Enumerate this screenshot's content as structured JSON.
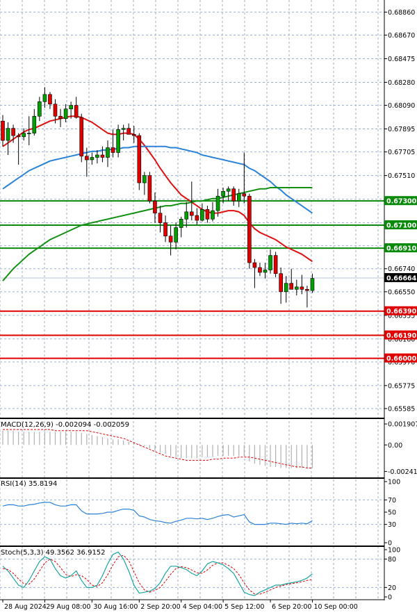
{
  "colors": {
    "bull": "#00a000",
    "bear": "#e00000",
    "wick": "#000000",
    "ma_fast": "#e01010",
    "ma_mid": "#2a82d8",
    "ma_slow": "#129012",
    "support_line": "#e00000",
    "resistance_line": "#0a8a0a",
    "grid": "#9ab0d0",
    "macd_hist": "#b0b0b0",
    "macd_signal": "#e00000",
    "rsi_line": "#2a82d8",
    "stoch_main": "#1aa5a0",
    "stoch_signal": "#e00000"
  },
  "chart_data": [
    {
      "type": "candlestick",
      "price_axis": {
        "ylim": [
          0.6551,
          0.6896
        ],
        "ticks": [
          "0.68860",
          "0.68670",
          "0.68475",
          "0.68280",
          "0.68090",
          "0.67895",
          "0.67705",
          "0.67510",
          "0.67315",
          "0.67120",
          "0.66930",
          "0.66740",
          "0.66550",
          "0.66355",
          "0.66160",
          "0.65970",
          "0.65775",
          "0.65585"
        ]
      },
      "x_axis": {
        "labels": [
          "28 Aug 2024",
          "29 Aug 08:00",
          "30 Aug 16:00",
          "2 Sep 20:00",
          "4 Sep 04:00",
          "5 Sep 12:00",
          "6 Sep 20:00",
          "10 Sep 00:00"
        ],
        "label_bar_index": [
          0,
          8,
          17,
          26,
          34,
          42,
          51,
          59
        ]
      },
      "series": [
        {
          "name": "candles",
          "ohlc": [
            [
              0.6796,
              0.6801,
              0.6775,
              0.678
            ],
            [
              0.678,
              0.6795,
              0.6768,
              0.679
            ],
            [
              0.679,
              0.6793,
              0.6778,
              0.6784
            ],
            [
              0.6784,
              0.6786,
              0.676,
              0.6783
            ],
            [
              0.6783,
              0.679,
              0.678,
              0.6786
            ],
            [
              0.6786,
              0.68,
              0.6776,
              0.6786
            ],
            [
              0.6786,
              0.6806,
              0.6784,
              0.68
            ],
            [
              0.68,
              0.6816,
              0.6796,
              0.6812
            ],
            [
              0.6812,
              0.6824,
              0.6807,
              0.6818
            ],
            [
              0.6818,
              0.682,
              0.6806,
              0.681
            ],
            [
              0.681,
              0.6814,
              0.6794,
              0.68
            ],
            [
              0.68,
              0.6806,
              0.6791,
              0.6798
            ],
            [
              0.6798,
              0.681,
              0.6795,
              0.6806
            ],
            [
              0.6806,
              0.6812,
              0.6798,
              0.6809
            ],
            [
              0.6809,
              0.6816,
              0.6798,
              0.6799
            ],
            [
              0.6799,
              0.6802,
              0.6762,
              0.6767
            ],
            [
              0.6767,
              0.6774,
              0.675,
              0.6764
            ],
            [
              0.6764,
              0.677,
              0.676,
              0.6766
            ],
            [
              0.6766,
              0.6772,
              0.6761,
              0.6768
            ],
            [
              0.6768,
              0.6775,
              0.6762,
              0.6766
            ],
            [
              0.6766,
              0.678,
              0.6758,
              0.6774
            ],
            [
              0.6774,
              0.6789,
              0.6766,
              0.677
            ],
            [
              0.677,
              0.6793,
              0.6766,
              0.6789
            ],
            [
              0.6789,
              0.6793,
              0.678,
              0.679
            ],
            [
              0.679,
              0.6794,
              0.6786,
              0.6785
            ],
            [
              0.6785,
              0.6792,
              0.6778,
              0.6784
            ],
            [
              0.6784,
              0.6786,
              0.6739,
              0.6745
            ],
            [
              0.6745,
              0.6754,
              0.6735,
              0.6751
            ],
            [
              0.6751,
              0.6754,
              0.6728,
              0.673
            ],
            [
              0.673,
              0.6737,
              0.6712,
              0.672
            ],
            [
              0.672,
              0.6726,
              0.6704,
              0.6712
            ],
            [
              0.6712,
              0.6718,
              0.6696,
              0.6701
            ],
            [
              0.6701,
              0.671,
              0.6685,
              0.6696
            ],
            [
              0.6696,
              0.6712,
              0.669,
              0.6708
            ],
            [
              0.6708,
              0.6717,
              0.67,
              0.6715
            ],
            [
              0.6715,
              0.6729,
              0.6708,
              0.6721
            ],
            [
              0.6721,
              0.6746,
              0.6714,
              0.6718
            ],
            [
              0.6718,
              0.6724,
              0.671,
              0.6714
            ],
            [
              0.6714,
              0.6728,
              0.6713,
              0.6723
            ],
            [
              0.6723,
              0.6726,
              0.6712,
              0.6715
            ],
            [
              0.6715,
              0.6729,
              0.6713,
              0.6722
            ],
            [
              0.6722,
              0.674,
              0.6717,
              0.6734
            ],
            [
              0.6734,
              0.6741,
              0.6728,
              0.6738
            ],
            [
              0.6738,
              0.6742,
              0.673,
              0.674
            ],
            [
              0.674,
              0.6742,
              0.6726,
              0.673
            ],
            [
              0.673,
              0.674,
              0.6725,
              0.6736
            ],
            [
              0.6736,
              0.677,
              0.6728,
              0.6734
            ],
            [
              0.6734,
              0.6736,
              0.6674,
              0.6679
            ],
            [
              0.6679,
              0.6682,
              0.6658,
              0.6675
            ],
            [
              0.6675,
              0.6679,
              0.6668,
              0.6671
            ],
            [
              0.6671,
              0.6679,
              0.6666,
              0.6673
            ],
            [
              0.6673,
              0.669,
              0.667,
              0.6685
            ],
            [
              0.6685,
              0.6688,
              0.6667,
              0.667
            ],
            [
              0.667,
              0.6675,
              0.6645,
              0.6655
            ],
            [
              0.6655,
              0.6668,
              0.6646,
              0.6662
            ],
            [
              0.6662,
              0.6674,
              0.6658,
              0.6657
            ],
            [
              0.6657,
              0.6665,
              0.6652,
              0.6659
            ],
            [
              0.6659,
              0.6669,
              0.6653,
              0.6657
            ],
            [
              0.6657,
              0.666,
              0.6642,
              0.6656
            ],
            [
              0.6656,
              0.667,
              0.6654,
              0.6666
            ]
          ]
        },
        {
          "name": "ma_fast",
          "start": 0,
          "values": [
            0.6775,
            0.6778,
            0.6781,
            0.6784,
            0.6787,
            0.6789,
            0.679,
            0.6792,
            0.6794,
            0.6796,
            0.6797,
            0.6798,
            0.6799,
            0.68,
            0.68,
            0.6799,
            0.6797,
            0.6795,
            0.6792,
            0.6789,
            0.6786,
            0.6785,
            0.6785,
            0.6786,
            0.6786,
            0.6785,
            0.6781,
            0.6776,
            0.677,
            0.6764,
            0.6757,
            0.6751,
            0.6745,
            0.674,
            0.6735,
            0.6732,
            0.6729,
            0.6726,
            0.6723,
            0.6721,
            0.672,
            0.672,
            0.6721,
            0.6722,
            0.6722,
            0.6721,
            0.6718,
            0.6712,
            0.6707,
            0.6704,
            0.6702,
            0.67,
            0.6698,
            0.6695,
            0.6692,
            0.669,
            0.6688,
            0.6686,
            0.6683,
            0.668
          ]
        },
        {
          "name": "ma_mid",
          "start": 0,
          "values": [
            0.674,
            0.6743,
            0.6746,
            0.6749,
            0.6752,
            0.6755,
            0.6757,
            0.6759,
            0.6761,
            0.6763,
            0.6764,
            0.6765,
            0.6766,
            0.6767,
            0.6768,
            0.6769,
            0.677,
            0.6771,
            0.6771,
            0.6772,
            0.6772,
            0.6773,
            0.6773,
            0.6774,
            0.6774,
            0.6775,
            0.6775,
            0.6775,
            0.6775,
            0.6775,
            0.6775,
            0.6775,
            0.6774,
            0.6774,
            0.6773,
            0.6772,
            0.6771,
            0.677,
            0.6768,
            0.6767,
            0.6766,
            0.6765,
            0.6764,
            0.6763,
            0.6762,
            0.6761,
            0.676,
            0.6757,
            0.6755,
            0.6752,
            0.6749,
            0.6746,
            0.6742,
            0.6739,
            0.6735,
            0.6732,
            0.6729,
            0.6726,
            0.6723,
            0.672
          ]
        },
        {
          "name": "ma_slow",
          "start": 0,
          "values": [
            0.6664,
            0.6669,
            0.6674,
            0.6678,
            0.6682,
            0.6686,
            0.6689,
            0.6692,
            0.6695,
            0.6698,
            0.67,
            0.6702,
            0.6704,
            0.6706,
            0.6708,
            0.671,
            0.6711,
            0.6712,
            0.6713,
            0.6714,
            0.6715,
            0.6716,
            0.6717,
            0.6718,
            0.6719,
            0.672,
            0.6721,
            0.6722,
            0.6723,
            0.6724,
            0.6725,
            0.6726,
            0.6726,
            0.6727,
            0.6728,
            0.6728,
            0.6729,
            0.673,
            0.673,
            0.6731,
            0.6732,
            0.6732,
            0.6733,
            0.6734,
            0.6735,
            0.6736,
            0.6737,
            0.6738,
            0.6739,
            0.674,
            0.674,
            0.6741,
            0.6741,
            0.6741,
            0.6741,
            0.6741,
            0.6741,
            0.6741,
            0.6741,
            0.6741
          ]
        }
      ],
      "levels": [
        {
          "value": 0.673,
          "label": "0.67300",
          "role": "resistance"
        },
        {
          "value": 0.671,
          "label": "0.67100",
          "role": "resistance"
        },
        {
          "value": 0.6691,
          "label": "0.66910",
          "role": "resistance"
        },
        {
          "value": 0.6639,
          "label": "0.66390",
          "role": "support"
        },
        {
          "value": 0.6619,
          "label": "0.66190",
          "role": "support"
        },
        {
          "value": 0.66,
          "label": "0.66000",
          "role": "support"
        }
      ],
      "current_price": {
        "value": 0.66664,
        "label": "0.66664"
      }
    },
    {
      "type": "histogram",
      "title": "MACD(12,26,9) -0.002094 -0.002059",
      "ylim": [
        -0.0027,
        0.0021
      ],
      "ticks": [
        "0.001907",
        "0.00",
        "-0.002412"
      ],
      "tick_values": [
        0.001907,
        0.0,
        -0.002412
      ],
      "series": [
        {
          "name": "macd_hist",
          "values": [
            0.0013,
            0.0013,
            0.0013,
            0.0012,
            0.0012,
            0.0012,
            0.0012,
            0.0012,
            0.0012,
            0.0012,
            0.0012,
            0.0012,
            0.0012,
            0.0012,
            0.0012,
            0.0011,
            0.001,
            0.0009,
            0.0008,
            0.0007,
            0.0006,
            0.0005,
            0.0005,
            0.0004,
            0.0003,
            0.0002,
            0.0001,
            -0.0001,
            -0.0003,
            -0.0005,
            -0.0007,
            -0.0008,
            -0.001,
            -0.0011,
            -0.0012,
            -0.0012,
            -0.0012,
            -0.0012,
            -0.0011,
            -0.0011,
            -0.0011,
            -0.001,
            -0.001,
            -0.001,
            -0.001,
            -0.001,
            -0.001,
            -0.0015,
            -0.0017,
            -0.0018,
            -0.0019,
            -0.002,
            -0.002,
            -0.0021,
            -0.0021,
            -0.0021,
            -0.0021,
            -0.0021,
            -0.0021,
            -0.0021
          ]
        },
        {
          "name": "macd_signal",
          "values": [
            0.0014,
            0.0014,
            0.0014,
            0.0014,
            0.0014,
            0.0014,
            0.0014,
            0.0014,
            0.0014,
            0.0014,
            0.0013,
            0.0013,
            0.0013,
            0.0013,
            0.0013,
            0.0013,
            0.0013,
            0.0012,
            0.0011,
            0.001,
            0.0009,
            0.0008,
            0.0007,
            0.0006,
            0.0004,
            0.0002,
            0.0,
            -0.0002,
            -0.0004,
            -0.0006,
            -0.0008,
            -0.001,
            -0.0011,
            -0.0012,
            -0.0013,
            -0.0014,
            -0.0014,
            -0.0014,
            -0.0014,
            -0.0014,
            -0.0013,
            -0.0013,
            -0.0012,
            -0.0012,
            -0.0012,
            -0.0011,
            -0.0011,
            -0.0011,
            -0.0012,
            -0.0013,
            -0.0014,
            -0.0015,
            -0.0016,
            -0.0017,
            -0.0018,
            -0.0019,
            -0.002,
            -0.002,
            -0.0021,
            -0.0021
          ]
        }
      ]
    },
    {
      "type": "line",
      "title": "RSI(14) 35.8194",
      "ylim": [
        0,
        100
      ],
      "ticks": [
        "100",
        "70",
        "50",
        "30",
        "0"
      ],
      "tick_values": [
        100,
        70,
        50,
        30,
        0
      ],
      "series": [
        {
          "name": "rsi",
          "values": [
            60,
            62,
            62,
            60,
            60,
            62,
            63,
            65,
            66,
            66,
            62,
            60,
            60,
            62,
            62,
            52,
            47,
            47,
            47,
            48,
            50,
            50,
            53,
            55,
            55,
            53,
            44,
            42,
            38,
            36,
            35,
            33,
            32,
            35,
            37,
            40,
            40,
            39,
            40,
            38,
            40,
            43,
            45,
            46,
            42,
            44,
            46,
            34,
            30,
            30,
            30,
            32,
            32,
            31,
            30,
            32,
            31,
            32,
            31,
            36
          ]
        }
      ]
    },
    {
      "type": "line",
      "title": "Stoch(5,3,3) 49.3562 36.9152",
      "ylim": [
        0,
        100
      ],
      "ticks": [
        "100",
        "80",
        "20",
        "0"
      ],
      "tick_values": [
        100,
        80,
        20,
        0
      ],
      "series": [
        {
          "name": "stoch_main",
          "values": [
            65,
            55,
            40,
            25,
            20,
            35,
            55,
            75,
            85,
            80,
            60,
            45,
            40,
            45,
            55,
            35,
            20,
            20,
            25,
            45,
            70,
            90,
            95,
            80,
            55,
            25,
            8,
            10,
            12,
            18,
            30,
            50,
            65,
            65,
            62,
            58,
            50,
            45,
            55,
            70,
            75,
            72,
            68,
            60,
            50,
            30,
            10,
            5,
            3,
            10,
            15,
            20,
            25,
            25,
            28,
            30,
            32,
            35,
            40,
            49
          ]
        },
        {
          "name": "stoch_signal",
          "values": [
            60,
            58,
            50,
            38,
            28,
            27,
            38,
            55,
            72,
            80,
            75,
            62,
            48,
            43,
            47,
            45,
            37,
            25,
            22,
            30,
            47,
            68,
            85,
            88,
            77,
            53,
            30,
            15,
            10,
            14,
            20,
            33,
            48,
            60,
            64,
            62,
            57,
            51,
            50,
            57,
            67,
            72,
            72,
            67,
            60,
            47,
            30,
            15,
            6,
            6,
            10,
            15,
            20,
            23,
            26,
            28,
            30,
            32,
            35,
            37
          ]
        }
      ]
    }
  ]
}
